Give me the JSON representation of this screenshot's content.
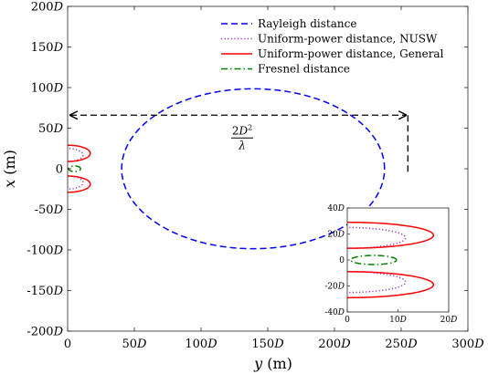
{
  "chart_data": {
    "type": "line",
    "xlabel": "y (m)",
    "ylabel": "x (m)",
    "xlim": [
      0,
      300
    ],
    "ylim": [
      -200,
      200
    ],
    "x_ticks": [
      0,
      50,
      100,
      150,
      200,
      250,
      300
    ],
    "y_ticks": [
      -200,
      -150,
      -100,
      -50,
      0,
      50,
      100,
      150,
      200
    ],
    "x_tick_labels": [
      "0",
      "50D",
      "100D",
      "150D",
      "200D",
      "250D",
      "300D"
    ],
    "y_tick_labels": [
      "-200D",
      "-150D",
      "-100D",
      "-50D",
      "0",
      "50D",
      "100D",
      "150D",
      "200D"
    ],
    "unit": "D",
    "legend_position": "top-right",
    "grid": false,
    "series": [
      {
        "name": "Rayleigh distance",
        "color": "#0000ff",
        "style": "dashed",
        "kind": "circle",
        "center": [
          139,
          0
        ],
        "radius": 98.5
      },
      {
        "name": "Uniform-power distance, NUSW",
        "color": "#9932CC",
        "style": "dotted",
        "kind": "lobes",
        "d_max": 11.5,
        "lobe_half_width": 8,
        "lobe_center": 17
      },
      {
        "name": "Uniform-power distance, General",
        "color": "#ff0000",
        "style": "solid",
        "kind": "lobes",
        "d_max": 17,
        "lobe_half_width": 10,
        "lobe_center": 19
      },
      {
        "name": "Fresnel distance",
        "color": "#008000",
        "style": "dashdot",
        "kind": "ellipse",
        "center": [
          5.2,
          0
        ],
        "rx": 4.5,
        "ry": 3.5
      }
    ],
    "annotation": {
      "text_parts": [
        "2D",
        "2",
        "λ"
      ],
      "arrow_from_y": 0,
      "arrow_to_y": 255,
      "arrow_x": 66,
      "vline_y": 255,
      "vline_from_x": 66,
      "vline_to_x": -8
    },
    "inset": {
      "xlim": [
        0,
        20
      ],
      "ylim": [
        -40,
        40
      ],
      "x_ticks": [
        0,
        10,
        20
      ],
      "y_ticks": [
        -40,
        -20,
        0,
        20,
        40
      ],
      "x_tick_labels": [
        "0",
        "10D",
        "20D"
      ],
      "y_tick_labels": [
        "-40D",
        "-20D",
        "0",
        "20D",
        "40D"
      ]
    }
  }
}
